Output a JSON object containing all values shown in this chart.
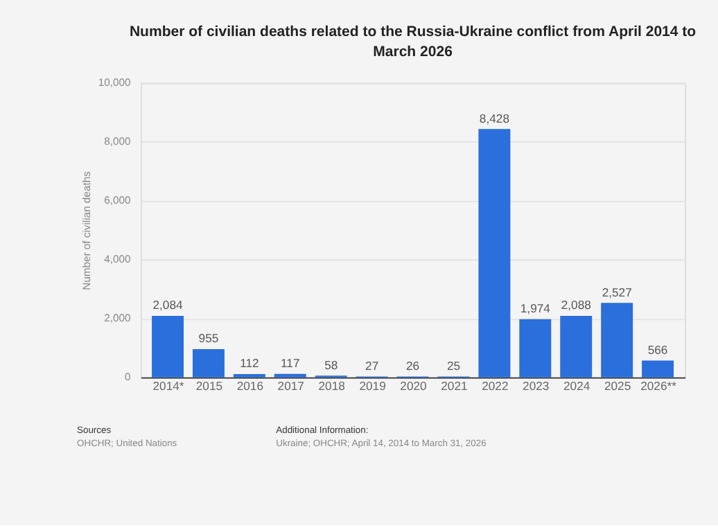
{
  "chart_data": {
    "type": "bar",
    "title": "Number of civilian deaths related to the Russia-Ukraine conflict from April 2014 to March 2026",
    "ylabel": "Number of civilian deaths",
    "categories": [
      "2014*",
      "2015",
      "2016",
      "2017",
      "2018",
      "2019",
      "2020",
      "2021",
      "2022",
      "2023",
      "2024",
      "2025",
      "2026**"
    ],
    "values": [
      2084,
      955,
      112,
      117,
      58,
      27,
      26,
      25,
      8428,
      1974,
      2088,
      2527,
      566
    ],
    "value_labels": [
      "2,084",
      "955",
      "112",
      "117",
      "58",
      "27",
      "26",
      "25",
      "8,428",
      "1,974",
      "2,088",
      "2,527",
      "566"
    ],
    "color": "#2a6fdb",
    "ylim": [
      0,
      10000
    ],
    "yticks": [
      0,
      {
        "value": 2000,
        "label": "2,000"
      },
      {
        "value": 4000,
        "label": "4,000"
      },
      {
        "value": 6000,
        "label": "6,000"
      },
      {
        "value": 8000,
        "label": "8,000"
      },
      {
        "value": 10000,
        "label": "10,000"
      }
    ],
    "grid": "y",
    "annotations": [
      "Sources",
      "OHCHR; United Nations",
      "Additional Information:",
      "Ukraine; OHCHR; April 14, 2014 to March 31, 2026"
    ]
  }
}
